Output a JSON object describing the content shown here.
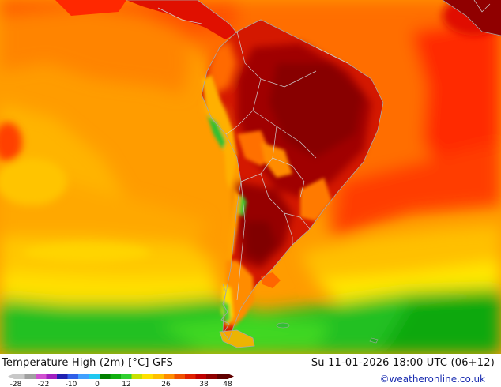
{
  "map": {
    "title": "Temperature High (2m) [°C] GFS",
    "datetime": "Su 11-01-2026 18:00 UTC (06+12)",
    "credit": "©weatheronline.co.uk",
    "region": "South America",
    "legend": {
      "unit": "°C",
      "tick_labels": [
        "-28",
        "-22",
        "-10",
        "0",
        "12",
        "26",
        "38",
        "48"
      ],
      "colors": [
        "#c8c8c8",
        "#a0a0a0",
        "#d050d0",
        "#a020c0",
        "#2020b0",
        "#3060e8",
        "#40a0ff",
        "#20c8f0",
        "#008000",
        "#10b010",
        "#30d030",
        "#c8e000",
        "#ffe000",
        "#ffc000",
        "#ff8c00",
        "#f05000",
        "#e02000",
        "#c00000",
        "#900000",
        "#600000"
      ]
    }
  },
  "colors": {
    "coast": "#a8a8a8",
    "border": "#cfcfcf"
  }
}
